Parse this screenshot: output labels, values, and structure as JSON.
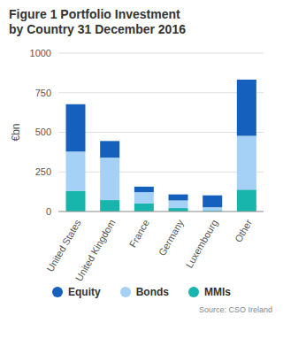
{
  "chart_data": {
    "type": "bar",
    "title": "Figure 1 Portfolio Investment by Country 31 December 2016",
    "y_label": "€bn",
    "source": "Source: CSO Ireland",
    "categories": [
      "United States",
      "United Kingdom",
      "France",
      "Germany",
      "Luxembourg",
      "Other"
    ],
    "series": [
      {
        "name": "MMIs",
        "color": "#17b5ac",
        "values": [
          131,
          72,
          52,
          22,
          5,
          138
        ]
      },
      {
        "name": "Bonds",
        "color": "#a6d1f7",
        "values": [
          248,
          268,
          70,
          48,
          22,
          340
        ]
      },
      {
        "name": "Equity",
        "color": "#1560bd",
        "values": [
          298,
          105,
          35,
          38,
          75,
          355
        ]
      }
    ],
    "stacked": true,
    "ylim": [
      0,
      1000
    ],
    "yticks": [
      0,
      250,
      500,
      750,
      1000
    ],
    "grid": true
  }
}
